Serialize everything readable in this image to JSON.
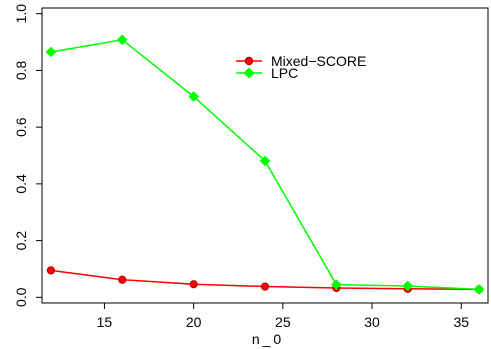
{
  "chart_data": {
    "type": "line",
    "title": "",
    "xlabel": "n_0",
    "ylabel": "",
    "xlim": [
      11.5,
      36.5
    ],
    "ylim": [
      -0.02,
      1.02
    ],
    "xticks": [
      15,
      20,
      25,
      30,
      35
    ],
    "yticks": [
      0.0,
      0.2,
      0.4,
      0.6,
      0.8,
      1.0
    ],
    "x": [
      12,
      16,
      20,
      24,
      28,
      32,
      36
    ],
    "grid": false,
    "legend_position": "top-right",
    "series": [
      {
        "name": "Mixed−SCORE",
        "color": "#ff0000",
        "marker": "circle",
        "values": [
          0.095,
          0.062,
          0.046,
          0.038,
          0.033,
          0.03,
          0.028
        ]
      },
      {
        "name": "LPC",
        "color": "#00ff00",
        "marker": "diamond",
        "values": [
          0.865,
          0.908,
          0.708,
          0.481,
          0.045,
          0.04,
          0.028
        ]
      }
    ]
  }
}
